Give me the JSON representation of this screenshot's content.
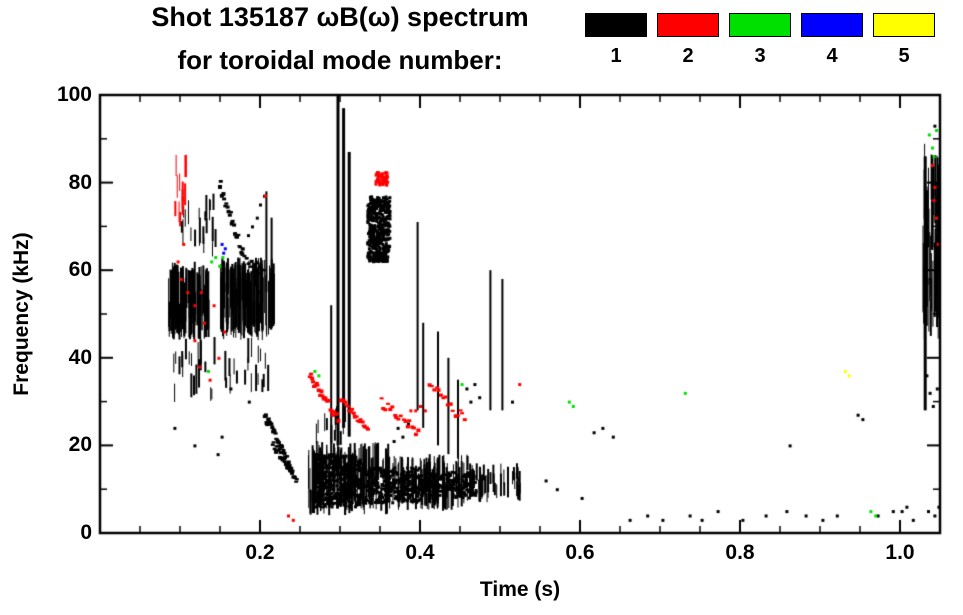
{
  "title": {
    "line1": "Shot 135187 ωB(ω) spectrum",
    "line2": "for toroidal mode number:"
  },
  "legend": {
    "modes": [
      {
        "label": "1",
        "color": "#000000"
      },
      {
        "label": "2",
        "color": "#ff0000"
      },
      {
        "label": "3",
        "color": "#00e000"
      },
      {
        "label": "4",
        "color": "#0000ff"
      },
      {
        "label": "5",
        "color": "#ffff00"
      }
    ]
  },
  "chart_data": {
    "type": "scatter",
    "title": "Shot 135187 ωB(ω) spectrum for toroidal mode number: 1-5",
    "xlabel": "Time (s)",
    "ylabel": "Frequency (kHz)",
    "xlim": [
      0,
      1.05
    ],
    "ylim": [
      0,
      100
    ],
    "xticks": [
      0.2,
      0.4,
      0.6,
      0.8,
      1.0
    ],
    "xtick_labels": [
      "0.2",
      "0.4",
      "0.6",
      "0.8",
      "1.0"
    ],
    "yticks": [
      0,
      20,
      40,
      60,
      80,
      100
    ],
    "ytick_labels": [
      "0",
      "20",
      "40",
      "60",
      "80",
      "100"
    ],
    "x_minor_step": 0.05,
    "y_minor_step": 10,
    "grid": false,
    "legend_position": "top-right",
    "mode_colors": {
      "1": "#000000",
      "2": "#ff0000",
      "3": "#00e000",
      "4": "#0000ff",
      "5": "#ffff00"
    },
    "seed": 1357,
    "clusters": [
      {
        "mode": 1,
        "type": "streaks",
        "t": [
          0.085,
          0.135
        ],
        "f": [
          44,
          62
        ],
        "n": 90,
        "h": [
          5,
          16
        ]
      },
      {
        "mode": 1,
        "type": "streaks",
        "t": [
          0.148,
          0.218
        ],
        "f": [
          44,
          63
        ],
        "n": 110,
        "h": [
          5,
          17
        ]
      },
      {
        "mode": 1,
        "type": "streaks",
        "t": [
          0.09,
          0.21
        ],
        "f": [
          29,
          45
        ],
        "n": 40,
        "h": [
          2,
          7
        ]
      },
      {
        "mode": 1,
        "type": "streaks",
        "t": [
          0.1,
          0.145
        ],
        "f": [
          63,
          79
        ],
        "n": 22,
        "h": [
          2,
          6
        ]
      },
      {
        "mode": 1,
        "type": "chirp",
        "t": [
          0.15,
          0.178
        ],
        "f": [
          80,
          64
        ],
        "n": 22,
        "jit": 1.5
      },
      {
        "mode": 1,
        "type": "chirp",
        "t": [
          0.178,
          0.205
        ],
        "f": [
          64,
          59
        ],
        "n": 12,
        "jit": 1.2
      },
      {
        "mode": 1,
        "type": "vline",
        "t": 0.208,
        "f": [
          55,
          78
        ]
      },
      {
        "mode": 1,
        "type": "vline",
        "t": 0.2145,
        "f": [
          48,
          72
        ]
      },
      {
        "mode": 1,
        "type": "dots",
        "pts": [
          [
            0.2,
            75
          ],
          [
            0.205,
            77
          ],
          [
            0.196,
            72
          ],
          [
            0.19,
            70
          ],
          [
            0.185,
            68
          ],
          [
            0.093,
            24
          ],
          [
            0.118,
            20
          ],
          [
            0.147,
            18
          ],
          [
            0.152,
            22
          ],
          [
            0.186,
            30
          ],
          [
            0.163,
            33
          ]
        ]
      },
      {
        "mode": 1,
        "type": "chirp",
        "t": [
          0.206,
          0.246
        ],
        "f": [
          27,
          12
        ],
        "n": 40,
        "jit": 1.2
      },
      {
        "mode": 1,
        "type": "chirp",
        "t": [
          0.216,
          0.24
        ],
        "f": [
          21,
          13
        ],
        "n": 20,
        "jit": 1.0
      },
      {
        "mode": 1,
        "type": "streaks",
        "t": [
          0.258,
          0.36
        ],
        "f": [
          4,
          21
        ],
        "n": 120,
        "h": [
          4,
          14
        ]
      },
      {
        "mode": 1,
        "type": "blob",
        "t": [
          0.268,
          0.325
        ],
        "f": [
          6,
          18
        ],
        "n": 500
      },
      {
        "mode": 1,
        "type": "blob",
        "t": [
          0.33,
          0.4
        ],
        "f": [
          7,
          15
        ],
        "n": 300
      },
      {
        "mode": 1,
        "type": "blob",
        "t": [
          0.4,
          0.47
        ],
        "f": [
          8,
          14
        ],
        "n": 200
      },
      {
        "mode": 1,
        "type": "streaks",
        "t": [
          0.36,
          0.46
        ],
        "f": [
          5,
          18
        ],
        "n": 90,
        "h": [
          3,
          11
        ]
      },
      {
        "mode": 1,
        "type": "streaks",
        "t": [
          0.46,
          0.525
        ],
        "f": [
          7,
          16
        ],
        "n": 45,
        "h": [
          2,
          7
        ]
      },
      {
        "mode": 1,
        "type": "streaks",
        "t": [
          0.265,
          0.305
        ],
        "f": [
          20,
          29
        ],
        "n": 15,
        "h": [
          2,
          5
        ]
      },
      {
        "mode": 1,
        "type": "vline",
        "t": 0.2975,
        "f": [
          20,
          100
        ]
      },
      {
        "mode": 1,
        "type": "vline",
        "t": 0.3045,
        "f": [
          24,
          97
        ]
      },
      {
        "mode": 1,
        "type": "vline",
        "t": 0.3115,
        "f": [
          22,
          87
        ]
      },
      {
        "mode": 1,
        "type": "vline",
        "t": 0.289,
        "f": [
          16,
          52
        ]
      },
      {
        "mode": 1,
        "type": "blob",
        "t": [
          0.334,
          0.362
        ],
        "f": [
          62,
          77
        ],
        "n": 420
      },
      {
        "mode": 1,
        "type": "vline",
        "t": 0.397,
        "f": [
          28,
          71
        ]
      },
      {
        "mode": 1,
        "type": "vline",
        "t": 0.404,
        "f": [
          24,
          48
        ]
      },
      {
        "mode": 1,
        "type": "vline",
        "t": 0.4225,
        "f": [
          20,
          46
        ]
      },
      {
        "mode": 1,
        "type": "vline",
        "t": 0.4355,
        "f": [
          18,
          40
        ]
      },
      {
        "mode": 1,
        "type": "vline",
        "t": 0.4475,
        "f": [
          17,
          35
        ]
      },
      {
        "mode": 1,
        "type": "vline",
        "t": 0.488,
        "f": [
          28,
          60
        ]
      },
      {
        "mode": 1,
        "type": "vline",
        "t": 0.503,
        "f": [
          28,
          58
        ]
      },
      {
        "mode": 1,
        "type": "dots",
        "pts": [
          [
            0.458,
            33
          ],
          [
            0.463,
            30
          ],
          [
            0.468,
            34
          ],
          [
            0.474,
            31
          ],
          [
            0.515,
            30
          ],
          [
            0.372,
            24
          ],
          [
            0.378,
            22
          ],
          [
            0.385,
            25
          ],
          [
            0.367,
            21
          ]
        ]
      },
      {
        "mode": 1,
        "type": "streaks",
        "t": [
          1.028,
          1.049
        ],
        "f": [
          44,
          90
        ],
        "n": 55,
        "h": [
          6,
          22
        ]
      },
      {
        "mode": 1,
        "type": "vline",
        "t": 1.0315,
        "f": [
          28,
          86
        ]
      },
      {
        "mode": 1,
        "type": "dots",
        "pts": [
          [
            1.033,
            36
          ],
          [
            1.037,
            32
          ],
          [
            1.041,
            29
          ],
          [
            1.046,
            33
          ],
          [
            1.035,
            5
          ],
          [
            1.043,
            4
          ],
          [
            1.048,
            6
          ],
          [
            1.043,
            93
          ]
        ]
      },
      {
        "mode": 1,
        "type": "dots",
        "pts": [
          [
            0.557,
            12
          ],
          [
            0.571,
            10
          ],
          [
            0.602,
            8
          ],
          [
            0.617,
            23
          ],
          [
            0.628,
            24
          ],
          [
            0.641,
            22
          ],
          [
            0.662,
            3
          ],
          [
            0.684,
            4
          ],
          [
            0.703,
            3
          ],
          [
            0.737,
            4
          ],
          [
            0.752,
            3
          ],
          [
            0.772,
            5
          ],
          [
            0.803,
            3
          ],
          [
            0.832,
            4
          ],
          [
            0.858,
            5
          ],
          [
            0.862,
            20
          ],
          [
            0.882,
            4
          ],
          [
            0.903,
            3
          ],
          [
            0.921,
            4
          ],
          [
            0.947,
            27
          ],
          [
            0.953,
            26
          ],
          [
            0.972,
            4
          ],
          [
            0.991,
            5
          ],
          [
            1.002,
            5
          ],
          [
            1.008,
            6
          ],
          [
            1.016,
            3
          ]
        ]
      },
      {
        "mode": 2,
        "type": "streaks",
        "t": [
          0.092,
          0.108
        ],
        "f": [
          70,
          87
        ],
        "n": 12,
        "h": [
          2,
          6
        ]
      },
      {
        "mode": 2,
        "type": "dots",
        "pts": [
          [
            0.097,
            62
          ],
          [
            0.101,
            58
          ],
          [
            0.104,
            66
          ],
          [
            0.109,
            55
          ],
          [
            0.206,
            77
          ]
        ]
      },
      {
        "mode": 2,
        "type": "dots",
        "pts": [
          [
            0.118,
            44
          ],
          [
            0.124,
            38
          ],
          [
            0.13,
            48
          ],
          [
            0.137,
            35
          ],
          [
            0.142,
            52
          ],
          [
            0.148,
            40
          ],
          [
            0.155,
            46
          ],
          [
            0.118,
            52
          ],
          [
            0.126,
            55
          ]
        ]
      },
      {
        "mode": 2,
        "type": "chirp",
        "t": [
          0.262,
          0.298
        ],
        "f": [
          36,
          26
        ],
        "n": 26,
        "jit": 1.2
      },
      {
        "mode": 2,
        "type": "chirp",
        "t": [
          0.301,
          0.335
        ],
        "f": [
          31,
          24
        ],
        "n": 20,
        "jit": 1.0
      },
      {
        "mode": 2,
        "type": "blob",
        "t": [
          0.344,
          0.359
        ],
        "f": [
          79.5,
          82.5
        ],
        "n": 60
      },
      {
        "mode": 2,
        "type": "chirp",
        "t": [
          0.352,
          0.398
        ],
        "f": [
          30,
          23
        ],
        "n": 18,
        "jit": 1.2
      },
      {
        "mode": 2,
        "type": "dots",
        "pts": [
          [
            0.388,
            28
          ],
          [
            0.394,
            28
          ],
          [
            0.4,
            29
          ],
          [
            0.406,
            28
          ]
        ]
      },
      {
        "mode": 2,
        "type": "chirp",
        "t": [
          0.412,
          0.456
        ],
        "f": [
          34,
          26
        ],
        "n": 16,
        "jit": 1.2
      },
      {
        "mode": 2,
        "type": "dots",
        "pts": [
          [
            0.235,
            4
          ],
          [
            0.241,
            3
          ],
          [
            0.524,
            34
          ]
        ]
      },
      {
        "mode": 2,
        "type": "dots",
        "pts": [
          [
            1.04,
            84
          ],
          [
            1.043,
            79
          ],
          [
            1.047,
            66
          ],
          [
            1.045,
            72
          ],
          [
            1.042,
            76
          ]
        ]
      },
      {
        "mode": 3,
        "type": "dots",
        "pts": [
          [
            0.139,
            62
          ],
          [
            0.144,
            63
          ],
          [
            0.149,
            61
          ],
          [
            0.153,
            63
          ]
        ]
      },
      {
        "mode": 3,
        "type": "dots",
        "pts": [
          [
            0.268,
            37
          ],
          [
            0.273,
            36
          ],
          [
            0.452,
            34
          ],
          [
            0.135,
            37
          ]
        ]
      },
      {
        "mode": 3,
        "type": "dots",
        "pts": [
          [
            0.586,
            30
          ],
          [
            0.591,
            29
          ],
          [
            0.731,
            32
          ]
        ]
      },
      {
        "mode": 3,
        "type": "dots",
        "pts": [
          [
            0.963,
            5
          ],
          [
            0.969,
            4
          ]
        ]
      },
      {
        "mode": 3,
        "type": "dots",
        "pts": [
          [
            1.036,
            91
          ],
          [
            1.04,
            88
          ],
          [
            1.045,
            92
          ],
          [
            1.042,
            86
          ]
        ]
      },
      {
        "mode": 4,
        "type": "dots",
        "pts": [
          [
            0.152,
            66
          ],
          [
            0.156,
            65
          ],
          [
            0.154,
            64
          ]
        ]
      },
      {
        "mode": 5,
        "type": "dots",
        "pts": [
          [
            0.931,
            37
          ],
          [
            0.936,
            36
          ]
        ]
      }
    ]
  }
}
